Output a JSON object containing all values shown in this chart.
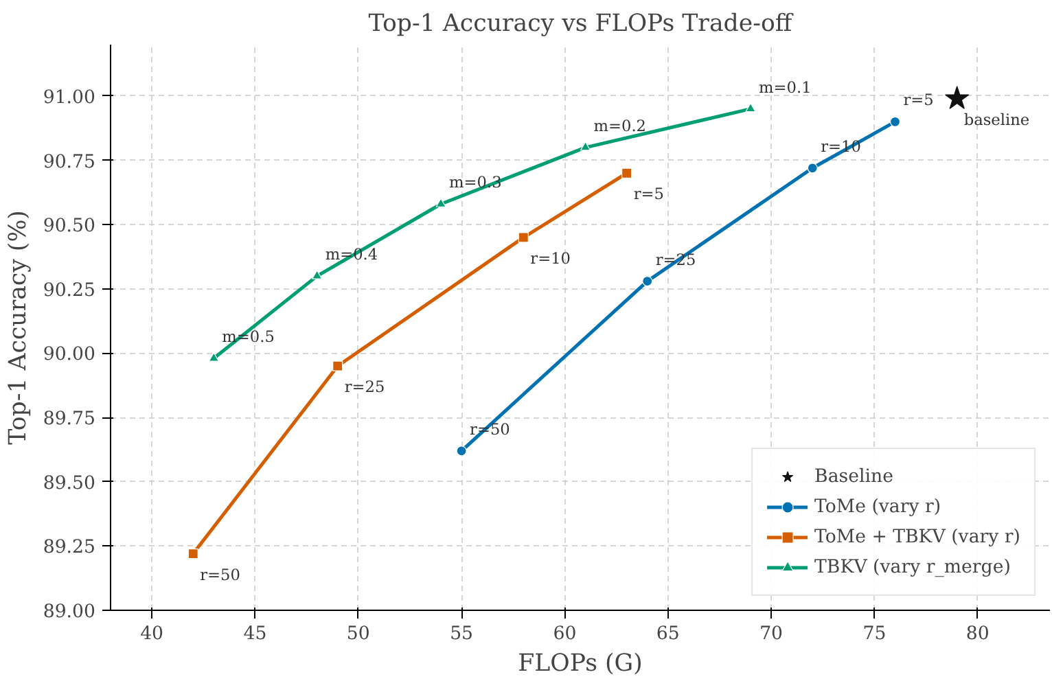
{
  "chart_data": {
    "type": "line",
    "title": "Top-1 Accuracy vs FLOPs Trade-off",
    "xlabel": "FLOPs (G)",
    "ylabel": "Top-1 Accuracy (%)",
    "xlim": [
      38,
      83.5
    ],
    "xticks": [
      40,
      45,
      50,
      55,
      60,
      65,
      70,
      75,
      80
    ],
    "ylim": [
      89.0,
      91.2
    ],
    "yticks": [
      {
        "value": 89.0,
        "label": "89.00"
      },
      {
        "value": 89.25,
        "label": "89.25"
      },
      {
        "value": 89.5,
        "label": "89.50"
      },
      {
        "value": 89.75,
        "label": "89.75"
      },
      {
        "value": 90.0,
        "label": "90.00"
      },
      {
        "value": 90.25,
        "label": "90.25"
      },
      {
        "value": 90.5,
        "label": "90.50"
      },
      {
        "value": 90.75,
        "label": "90.75"
      },
      {
        "value": 91.0,
        "label": "91.00"
      }
    ],
    "grid": true,
    "legend": "bottom right",
    "line_style": "solid",
    "series": [
      {
        "name": "Baseline",
        "type": "scatter",
        "marker": "star",
        "color": "#111111",
        "x": [
          79
        ],
        "values": [
          90.99
        ]
      },
      {
        "name": "ToMe (vary r)",
        "marker": "circle",
        "color": "#0072b2",
        "x": [
          55,
          64,
          72,
          76
        ],
        "values": [
          89.62,
          90.28,
          90.72,
          90.9
        ]
      },
      {
        "name": "ToMe + TBKV (vary r)",
        "marker": "square",
        "color": "#d55e00",
        "x": [
          42,
          49,
          58,
          63
        ],
        "values": [
          89.22,
          89.95,
          90.45,
          90.7
        ]
      },
      {
        "name": "TBKV (vary r_merge)",
        "marker": "triangle",
        "color": "#009e73",
        "x": [
          43,
          48,
          54,
          61,
          69
        ],
        "values": [
          89.98,
          90.3,
          90.58,
          90.8,
          90.95
        ]
      }
    ],
    "annotations": [
      {
        "text": "baseline",
        "x": 79,
        "y": 90.99
      },
      {
        "text": "r=50",
        "x": 55,
        "y": 89.62
      },
      {
        "text": "r=25",
        "x": 64,
        "y": 90.28
      },
      {
        "text": "r=10",
        "x": 72,
        "y": 90.72
      },
      {
        "text": "r=5",
        "x": 76,
        "y": 90.9
      },
      {
        "text": "r=50",
        "x": 42,
        "y": 89.22
      },
      {
        "text": "r=25",
        "x": 49,
        "y": 89.95
      },
      {
        "text": "r=10",
        "x": 58,
        "y": 90.45
      },
      {
        "text": "r=5",
        "x": 63,
        "y": 90.7
      },
      {
        "text": "m=0.5",
        "x": 43,
        "y": 89.98
      },
      {
        "text": "m=0.4",
        "x": 48,
        "y": 90.3
      },
      {
        "text": "m=0.3",
        "x": 54,
        "y": 90.58
      },
      {
        "text": "m=0.2",
        "x": 61,
        "y": 90.8
      },
      {
        "text": "m=0.1",
        "x": 69,
        "y": 90.95
      }
    ]
  }
}
